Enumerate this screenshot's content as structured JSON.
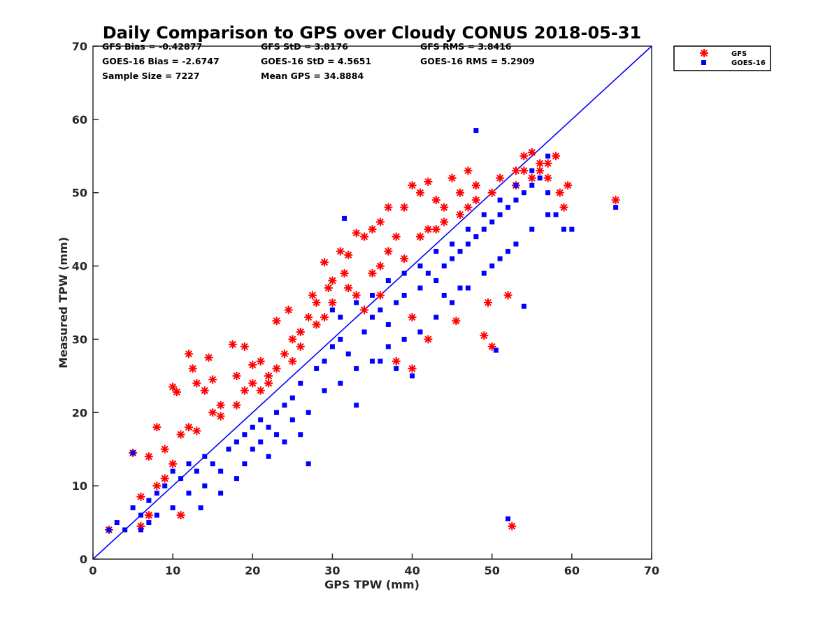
{
  "chart_data": {
    "type": "scatter",
    "title": "Daily Comparison to GPS over Cloudy CONUS 2018-05-31",
    "xlabel": "GPS TPW (mm)",
    "ylabel": "Measured TPW (mm)",
    "xlim": [
      0,
      70
    ],
    "ylim": [
      0,
      70
    ],
    "xticks": [
      "0",
      "10",
      "20",
      "30",
      "40",
      "50",
      "60",
      "70"
    ],
    "yticks": [
      "0",
      "10",
      "20",
      "30",
      "40",
      "50",
      "60",
      "70"
    ],
    "grid": false,
    "legend_position": "outside-top-right",
    "stats": [
      "GFS Bias = -0.42877",
      "GFS StD = 3.8176",
      "GFS RMS = 3.8416",
      "GOES-16 Bias = -2.6747",
      "GOES-16 StD = 4.5651",
      "GOES-16 RMS = 5.2909",
      "Sample Size = 7227",
      "Mean GPS = 34.8884"
    ],
    "reference_line": {
      "x": [
        0,
        70
      ],
      "y": [
        0,
        70
      ],
      "color": "#0000ff"
    },
    "series": [
      {
        "name": "GFS",
        "marker": "asterisk",
        "color": "#ff0000",
        "points": [
          [
            2,
            4
          ],
          [
            5,
            14.5
          ],
          [
            6,
            4.5
          ],
          [
            7,
            14
          ],
          [
            8,
            18
          ],
          [
            9,
            11
          ],
          [
            10,
            23.5
          ],
          [
            10.5,
            22.8
          ],
          [
            11,
            6
          ],
          [
            12,
            28
          ],
          [
            12.5,
            26
          ],
          [
            13,
            24
          ],
          [
            14,
            23
          ],
          [
            14.5,
            27.5
          ],
          [
            15,
            24.5
          ],
          [
            16,
            21
          ],
          [
            17.5,
            29.3
          ],
          [
            18,
            25
          ],
          [
            19,
            29
          ],
          [
            20,
            26.5
          ],
          [
            21,
            27
          ],
          [
            22,
            24
          ],
          [
            23,
            32.5
          ],
          [
            24,
            28
          ],
          [
            24.5,
            34
          ],
          [
            25,
            30
          ],
          [
            26,
            31
          ],
          [
            27,
            33
          ],
          [
            27.5,
            36
          ],
          [
            28,
            35
          ],
          [
            29,
            40.5
          ],
          [
            29.5,
            37
          ],
          [
            30,
            38
          ],
          [
            31,
            42
          ],
          [
            31.5,
            39
          ],
          [
            32,
            41.5
          ],
          [
            33,
            44.5
          ],
          [
            34,
            44
          ],
          [
            35,
            45
          ],
          [
            36,
            46
          ],
          [
            37,
            48
          ],
          [
            38,
            44
          ],
          [
            38,
            27
          ],
          [
            39,
            48
          ],
          [
            40,
            51
          ],
          [
            40,
            26
          ],
          [
            41,
            50
          ],
          [
            42,
            51.5
          ],
          [
            43,
            49
          ],
          [
            44,
            48
          ],
          [
            45,
            52
          ],
          [
            46,
            50
          ],
          [
            47,
            53
          ],
          [
            48,
            51
          ],
          [
            49,
            30.5
          ],
          [
            49.5,
            35
          ],
          [
            50,
            29
          ],
          [
            52,
            36
          ],
          [
            52.5,
            4.5
          ],
          [
            53,
            53
          ],
          [
            54,
            55
          ],
          [
            55,
            55.5
          ],
          [
            56,
            54
          ],
          [
            57,
            52
          ],
          [
            58,
            55
          ],
          [
            58.5,
            50
          ],
          [
            59,
            48
          ],
          [
            59.5,
            51
          ],
          [
            65.5,
            49
          ],
          [
            6,
            8.5
          ],
          [
            7,
            6
          ],
          [
            8,
            10
          ],
          [
            9,
            15
          ],
          [
            10,
            13
          ],
          [
            11,
            17
          ],
          [
            12,
            18
          ],
          [
            13,
            17.5
          ],
          [
            15,
            20
          ],
          [
            16,
            19.5
          ],
          [
            18,
            21
          ],
          [
            19,
            23
          ],
          [
            20,
            24
          ],
          [
            21,
            23
          ],
          [
            22,
            25
          ],
          [
            23,
            26
          ],
          [
            25,
            27
          ],
          [
            26,
            29
          ],
          [
            28,
            32
          ],
          [
            29,
            33
          ],
          [
            30,
            35
          ],
          [
            32,
            37
          ],
          [
            33,
            36
          ],
          [
            35,
            39
          ],
          [
            36,
            40
          ],
          [
            37,
            42
          ],
          [
            39,
            41
          ],
          [
            41,
            44
          ],
          [
            42,
            45
          ],
          [
            43,
            45
          ],
          [
            44,
            46
          ],
          [
            46,
            47
          ],
          [
            47,
            48
          ],
          [
            48,
            49
          ],
          [
            50,
            50
          ],
          [
            51,
            52
          ],
          [
            53,
            51
          ],
          [
            54,
            53
          ],
          [
            55,
            52
          ],
          [
            56,
            53
          ],
          [
            57,
            54
          ],
          [
            45.5,
            32.5
          ],
          [
            42,
            30
          ],
          [
            40,
            33
          ],
          [
            36,
            36
          ],
          [
            34,
            34
          ]
        ]
      },
      {
        "name": "GOES-16",
        "marker": "square",
        "color": "#0000ff",
        "points": [
          [
            2,
            4
          ],
          [
            3,
            5
          ],
          [
            4,
            4
          ],
          [
            5,
            14.5
          ],
          [
            5,
            7
          ],
          [
            6,
            6
          ],
          [
            7,
            8
          ],
          [
            8,
            9
          ],
          [
            9,
            10
          ],
          [
            10,
            12
          ],
          [
            11,
            11
          ],
          [
            12,
            13
          ],
          [
            13,
            12
          ],
          [
            13.5,
            7
          ],
          [
            14,
            14
          ],
          [
            15,
            13
          ],
          [
            16,
            12
          ],
          [
            17,
            15
          ],
          [
            18,
            16
          ],
          [
            19,
            17
          ],
          [
            20,
            18
          ],
          [
            21,
            19
          ],
          [
            22,
            18
          ],
          [
            23,
            20
          ],
          [
            24,
            21
          ],
          [
            25,
            22
          ],
          [
            26,
            24
          ],
          [
            27,
            13
          ],
          [
            28,
            26
          ],
          [
            29,
            27
          ],
          [
            30,
            29
          ],
          [
            31,
            30
          ],
          [
            31.5,
            46.5
          ],
          [
            32,
            28
          ],
          [
            33,
            21
          ],
          [
            34,
            31
          ],
          [
            35,
            33
          ],
          [
            36,
            34
          ],
          [
            37,
            32
          ],
          [
            38,
            35
          ],
          [
            39,
            36
          ],
          [
            40,
            25
          ],
          [
            41,
            37
          ],
          [
            42,
            39
          ],
          [
            43,
            38
          ],
          [
            44,
            40
          ],
          [
            45,
            41
          ],
          [
            46,
            42
          ],
          [
            47,
            43
          ],
          [
            48,
            44
          ],
          [
            49,
            45
          ],
          [
            50,
            46
          ],
          [
            50.5,
            28.5
          ],
          [
            51,
            47
          ],
          [
            52,
            5.5
          ],
          [
            52,
            48
          ],
          [
            53,
            49
          ],
          [
            54,
            34.5
          ],
          [
            54,
            50
          ],
          [
            55,
            51
          ],
          [
            56,
            52
          ],
          [
            57,
            50
          ],
          [
            58,
            47
          ],
          [
            59,
            45
          ],
          [
            60,
            45
          ],
          [
            65.5,
            48
          ],
          [
            48,
            58.5
          ],
          [
            30,
            34
          ],
          [
            31,
            33
          ],
          [
            33,
            35
          ],
          [
            35,
            36
          ],
          [
            37,
            38
          ],
          [
            39,
            39
          ],
          [
            41,
            40
          ],
          [
            43,
            42
          ],
          [
            45,
            43
          ],
          [
            47,
            45
          ],
          [
            49,
            47
          ],
          [
            51,
            49
          ],
          [
            53,
            51
          ],
          [
            55,
            53
          ],
          [
            57,
            55
          ],
          [
            20,
            15
          ],
          [
            22,
            14
          ],
          [
            24,
            16
          ],
          [
            26,
            17
          ],
          [
            18,
            11
          ],
          [
            16,
            9
          ],
          [
            14,
            10
          ],
          [
            12,
            9
          ],
          [
            10,
            7
          ],
          [
            8,
            6
          ],
          [
            7,
            5
          ],
          [
            6,
            4
          ],
          [
            19,
            13
          ],
          [
            21,
            16
          ],
          [
            23,
            17
          ],
          [
            25,
            19
          ],
          [
            27,
            20
          ],
          [
            29,
            23
          ],
          [
            31,
            24
          ],
          [
            33,
            26
          ],
          [
            35,
            27
          ],
          [
            37,
            29
          ],
          [
            39,
            30
          ],
          [
            41,
            31
          ],
          [
            43,
            33
          ],
          [
            45,
            35
          ],
          [
            47,
            37
          ],
          [
            49,
            39
          ],
          [
            51,
            41
          ],
          [
            53,
            43
          ],
          [
            55,
            45
          ],
          [
            57,
            47
          ],
          [
            36,
            27
          ],
          [
            38,
            26
          ],
          [
            44,
            36
          ],
          [
            46,
            37
          ],
          [
            50,
            40
          ],
          [
            52,
            42
          ]
        ]
      }
    ]
  }
}
